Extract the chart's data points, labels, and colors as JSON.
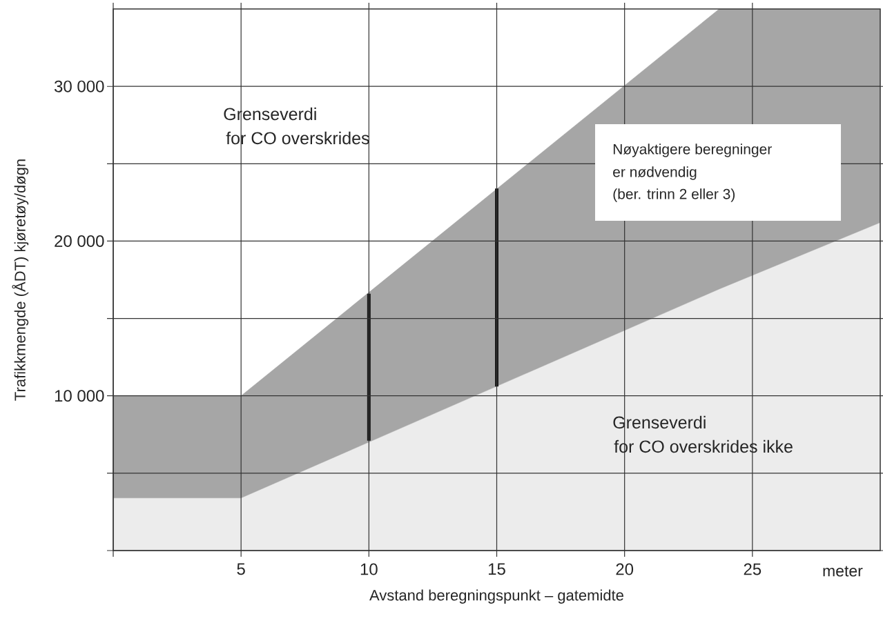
{
  "chart_data": {
    "type": "area",
    "xlabel": "Avstand beregningspunkt – gatemidte",
    "ylabel": "Trafikkmengde (ÅDT) kjøretøy/døgn",
    "xlim": [
      0,
      30
    ],
    "ylim": [
      0,
      35000
    ],
    "xticks": [
      {
        "value": 0,
        "label": null
      },
      5,
      10,
      15,
      20,
      25
    ],
    "yticks": [
      {
        "value": 0,
        "label": null
      },
      {
        "value": 5000,
        "label": null
      },
      {
        "value": 10000,
        "label": "10 000"
      },
      {
        "value": 15000,
        "label": null
      },
      {
        "value": 20000,
        "label": "20 000"
      },
      {
        "value": 25000,
        "label": null
      },
      {
        "value": 30000,
        "label": "30 000"
      }
    ],
    "grid": true,
    "stacked": true,
    "series": [
      {
        "color": "#ececec",
        "x": [
          0,
          5,
          23.7,
          30
        ],
        "values": [
          3400,
          3400,
          16900,
          21200
        ]
      },
      {
        "color": "#a6a6a6",
        "x": [
          0,
          5,
          23.7,
          30
        ],
        "values": [
          6600,
          6600,
          18100,
          13800
        ]
      },
      {
        "type": "line",
        "color": "#1a1a1a",
        "x": [
          10,
          10
        ],
        "values": [
          7100,
          16600
        ]
      },
      {
        "type": "line",
        "color": "#1a1a1a",
        "x": [
          15,
          15
        ],
        "values": [
          10600,
          23400
        ]
      }
    ],
    "annotations": [
      "Grenseverdi",
      "for CO overskrides",
      "Nøyaktigere beregninger",
      "er nødvendig",
      "(ber. trinn 2 eller 3)",
      "Grenseverdi",
      "for CO overskrides ikke",
      "meter"
    ]
  }
}
